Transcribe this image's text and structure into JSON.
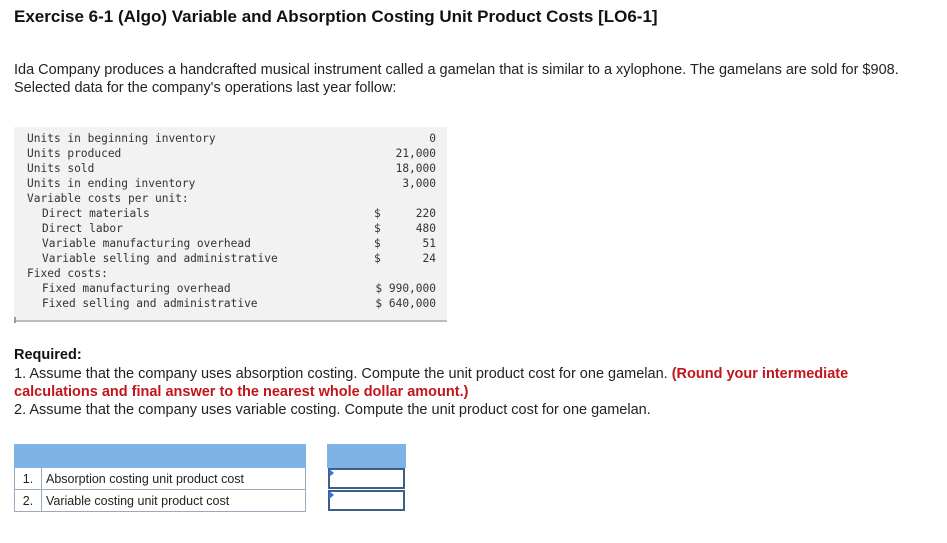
{
  "title": "Exercise 6-1 (Algo) Variable and Absorption Costing Unit Product Costs [LO6-1]",
  "intro": "Ida Company produces a handcrafted musical instrument called a gamelan that is similar to a xylophone. The gamelans are sold for $908. Selected data for the company's operations last year follow:",
  "data_rows": [
    {
      "label": "Units in beginning inventory",
      "indent": 0,
      "currency": "",
      "value": "0"
    },
    {
      "label": "Units produced",
      "indent": 0,
      "currency": "",
      "value": "21,000"
    },
    {
      "label": "Units sold",
      "indent": 0,
      "currency": "",
      "value": "18,000"
    },
    {
      "label": "Units in ending inventory",
      "indent": 0,
      "currency": "",
      "value": "3,000"
    },
    {
      "label": "Variable costs per unit:",
      "indent": 0,
      "currency": "",
      "value": ""
    },
    {
      "label": "Direct materials",
      "indent": 1,
      "currency": "$",
      "value": "220"
    },
    {
      "label": "Direct labor",
      "indent": 1,
      "currency": "$",
      "value": "480"
    },
    {
      "label": "Variable manufacturing overhead",
      "indent": 1,
      "currency": "$",
      "value": "51"
    },
    {
      "label": "Variable selling and administrative",
      "indent": 1,
      "currency": "$",
      "value": "24"
    },
    {
      "label": "Fixed costs:",
      "indent": 0,
      "currency": "",
      "value": ""
    },
    {
      "label": "Fixed manufacturing overhead",
      "indent": 1,
      "currency": "",
      "value": "$ 990,000"
    },
    {
      "label": "Fixed selling and administrative",
      "indent": 1,
      "currency": "",
      "value": "$ 640,000"
    }
  ],
  "required": {
    "heading": "Required:",
    "item1_text": "1. Assume that the company uses absorption costing. Compute the unit product cost for one gamelan.",
    "item1_note": "(Round your intermediate calculations and final answer to the nearest whole dollar amount.)",
    "item2_text": "2. Assume that the company uses variable costing. Compute the unit product cost for one gamelan."
  },
  "answers": [
    {
      "num": "1.",
      "label": "Absorption costing unit product cost",
      "value": ""
    },
    {
      "num": "2.",
      "label": "Variable costing unit product cost",
      "value": ""
    }
  ],
  "colors": {
    "note_red": "#c0161b",
    "table_header": "#7fb3e6",
    "input_border": "#3a5f8a"
  }
}
